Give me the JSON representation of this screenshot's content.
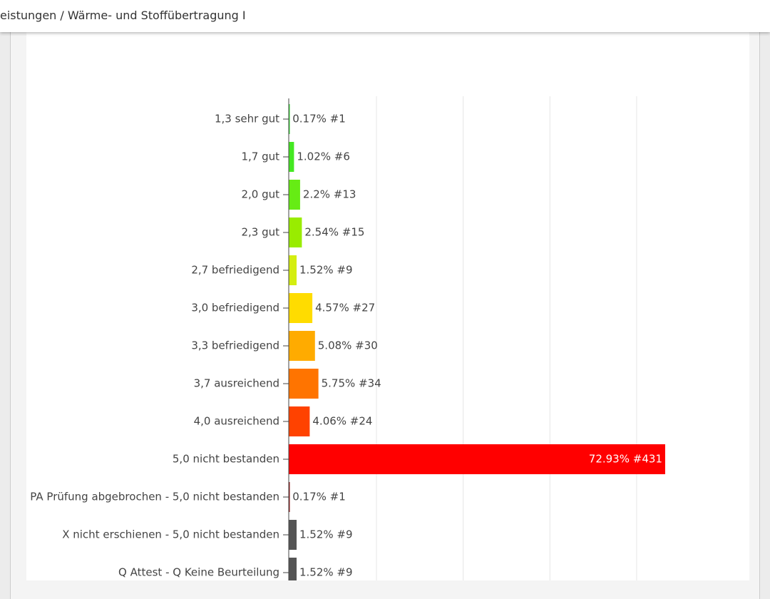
{
  "header": {
    "title": "eistungen / Wärme- und Stoffübertragung I"
  },
  "chart_data": {
    "type": "hbar",
    "categories": [
      "1,3 sehr gut",
      "1,7 gut",
      "2,0 gut",
      "2,3 gut",
      "2,7 befriedigend",
      "3,0 befriedigend",
      "3,3 befriedigend",
      "3,7 ausreichend",
      "4,0 ausreichend",
      "5,0 nicht bestanden",
      "PA Prüfung abgebrochen - 5,0 nicht bestanden",
      "X nicht erschienen - 5,0 nicht bestanden",
      "Q Attest - Q Keine Beurteilung"
    ],
    "values": [
      0.17,
      1.02,
      2.2,
      2.54,
      1.52,
      4.57,
      5.08,
      5.75,
      4.06,
      72.93,
      0.17,
      1.52,
      1.52
    ],
    "value_labels": [
      "0.17% #1",
      "1.02% #6",
      "2.2% #13",
      "2.54% #15",
      "1.52% #9",
      "4.57% #27",
      "5.08% #30",
      "5.75% #34",
      "4.06% #24",
      "72.93% #431",
      "0.17% #1",
      "1.52% #9",
      "1.52% #9"
    ],
    "colors": [
      "#2fd62f",
      "#44e822",
      "#66ec14",
      "#99ec00",
      "#d4ee10",
      "#ffdc00",
      "#ffab00",
      "#ff7400",
      "#ff4200",
      "#ff0000",
      "#8b1010",
      "#555555",
      "#555555"
    ],
    "xlim": [
      0,
      84.4
    ],
    "xticks": [
      17,
      33.8,
      50.6,
      67.4
    ],
    "grid": true
  }
}
